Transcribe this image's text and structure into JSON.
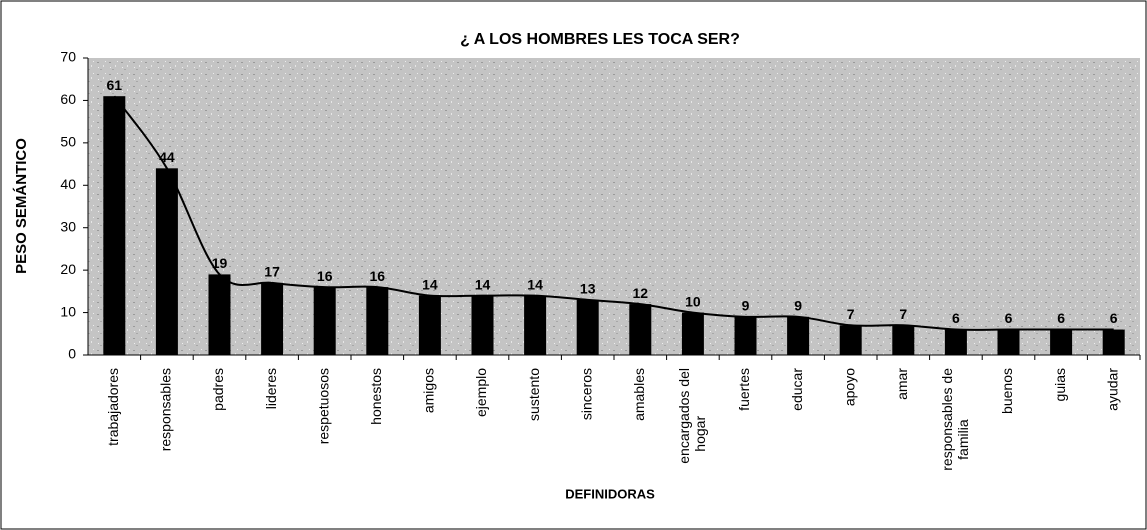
{
  "chart_data": {
    "type": "bar",
    "title": "¿ A LOS HOMBRES LES TOCA SER?",
    "x_label": "DEFINIDORAS",
    "y_label": "PESO SEMÁNTICO",
    "categories": [
      "trabajadores",
      "responsables",
      "padres",
      "lideres",
      "respetuosos",
      "honestos",
      "amigos",
      "ejemplo",
      "sustento",
      "sinceros",
      "amables",
      "encargados del hogar",
      "fuertes",
      "educar",
      "apoyo",
      "amar",
      "responsables de familia",
      "buenos",
      "guias",
      "ayudar"
    ],
    "values": [
      61,
      44,
      19,
      17,
      16,
      16,
      14,
      14,
      14,
      13,
      12,
      10,
      9,
      9,
      7,
      7,
      6,
      6,
      6,
      6
    ],
    "color": "#000000",
    "trendline": true,
    "ylim": [
      0,
      70
    ],
    "yticks": [
      0,
      10,
      20,
      30,
      40,
      50,
      60,
      70
    ]
  }
}
